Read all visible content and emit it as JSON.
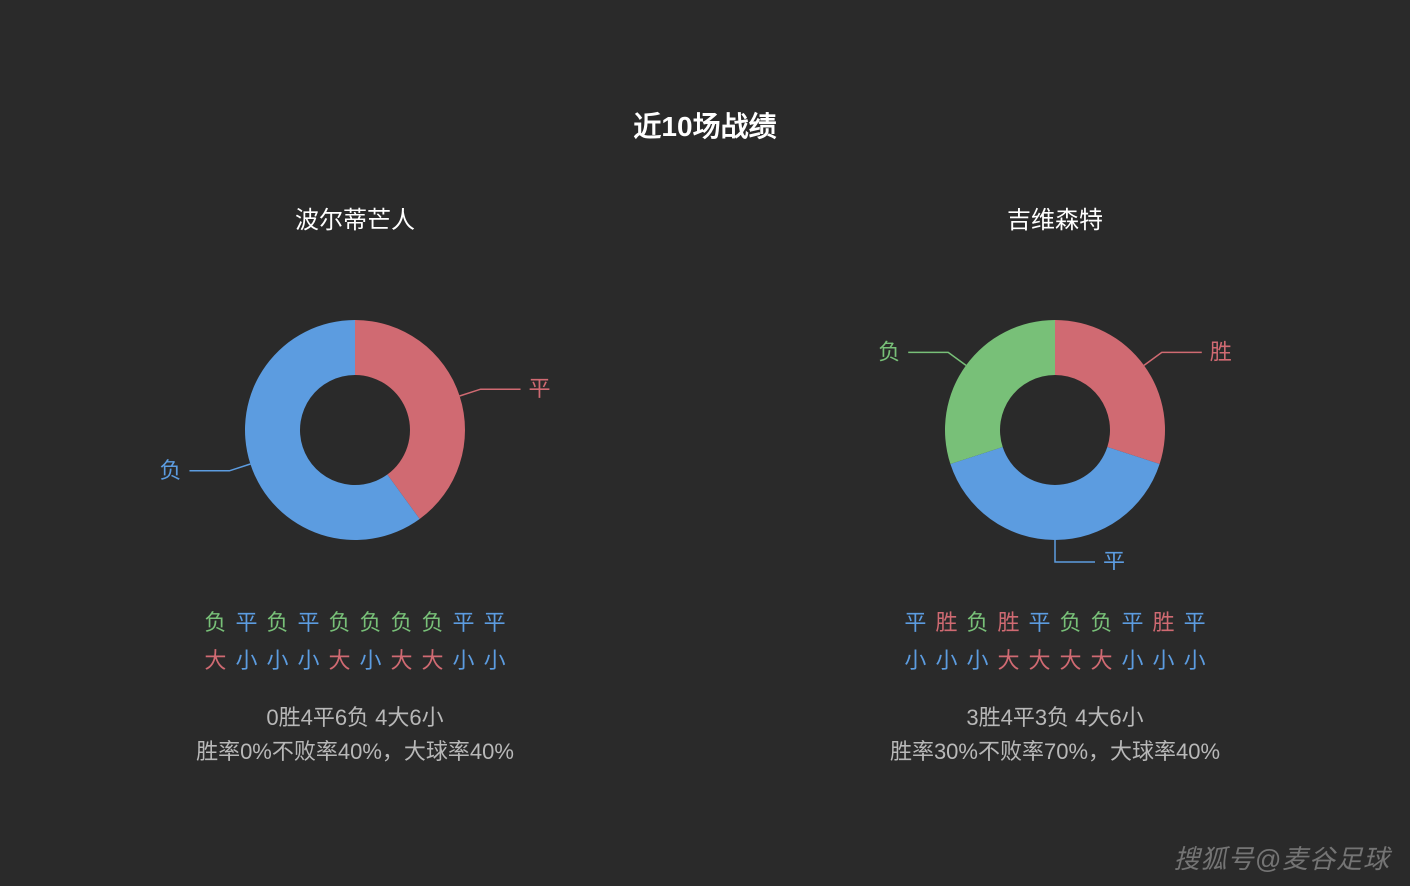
{
  "page": {
    "title": "近10场战绩",
    "background_color": "#2a2a2a",
    "text_color": "#e8e8e8",
    "title_fontsize": 28
  },
  "colors": {
    "win": "#d06a72",
    "draw": "#5c9ce0",
    "loss": "#78c078",
    "big": "#d06a72",
    "small": "#5c9ce0",
    "summary": "#b8b8b8",
    "label": "#ffffff"
  },
  "donut_style": {
    "outer_radius": 110,
    "inner_radius": 55,
    "leader_fontsize": 22,
    "leader_color_matches_slice": true,
    "stroke_width": 1
  },
  "teams": [
    {
      "name": "波尔蒂芒人",
      "donut": {
        "type": "donut",
        "slices": [
          {
            "label": "胜",
            "key": "win",
            "value": 0,
            "color": "#d06a72"
          },
          {
            "label": "平",
            "key": "draw",
            "value": 4,
            "color": "#5c9ce0"
          },
          {
            "label": "负",
            "key": "loss",
            "value": 6,
            "color": "#78c078"
          }
        ],
        "render_colors": [
          "#d06a72",
          "#5c9ce0"
        ],
        "render_values": [
          4,
          6
        ],
        "render_labels": [
          "平",
          "负"
        ],
        "start_angle_deg": 0
      },
      "results_row": [
        {
          "char": "负",
          "kind": "loss"
        },
        {
          "char": "平",
          "kind": "draw"
        },
        {
          "char": "负",
          "kind": "loss"
        },
        {
          "char": "平",
          "kind": "draw"
        },
        {
          "char": "负",
          "kind": "loss"
        },
        {
          "char": "负",
          "kind": "loss"
        },
        {
          "char": "负",
          "kind": "loss"
        },
        {
          "char": "负",
          "kind": "loss"
        },
        {
          "char": "平",
          "kind": "draw"
        },
        {
          "char": "平",
          "kind": "draw"
        }
      ],
      "bigsmall_row": [
        {
          "char": "大",
          "kind": "big"
        },
        {
          "char": "小",
          "kind": "small"
        },
        {
          "char": "小",
          "kind": "small"
        },
        {
          "char": "小",
          "kind": "small"
        },
        {
          "char": "大",
          "kind": "big"
        },
        {
          "char": "小",
          "kind": "small"
        },
        {
          "char": "大",
          "kind": "big"
        },
        {
          "char": "大",
          "kind": "big"
        },
        {
          "char": "小",
          "kind": "small"
        },
        {
          "char": "小",
          "kind": "small"
        }
      ],
      "summary_line1": "0胜4平6负 4大6小",
      "summary_line2": "胜率0%不败率40%，大球率40%"
    },
    {
      "name": "吉维森特",
      "donut": {
        "type": "donut",
        "slices": [
          {
            "label": "胜",
            "key": "win",
            "value": 3,
            "color": "#d06a72"
          },
          {
            "label": "平",
            "key": "draw",
            "value": 4,
            "color": "#5c9ce0"
          },
          {
            "label": "负",
            "key": "loss",
            "value": 3,
            "color": "#78c078"
          }
        ],
        "render_colors": [
          "#d06a72",
          "#5c9ce0",
          "#78c078"
        ],
        "render_values": [
          3,
          4,
          3
        ],
        "render_labels": [
          "胜",
          "平",
          "负"
        ],
        "start_angle_deg": 0
      },
      "results_row": [
        {
          "char": "平",
          "kind": "draw"
        },
        {
          "char": "胜",
          "kind": "win"
        },
        {
          "char": "负",
          "kind": "loss"
        },
        {
          "char": "胜",
          "kind": "win"
        },
        {
          "char": "平",
          "kind": "draw"
        },
        {
          "char": "负",
          "kind": "loss"
        },
        {
          "char": "负",
          "kind": "loss"
        },
        {
          "char": "平",
          "kind": "draw"
        },
        {
          "char": "胜",
          "kind": "win"
        },
        {
          "char": "平",
          "kind": "draw"
        }
      ],
      "bigsmall_row": [
        {
          "char": "小",
          "kind": "small"
        },
        {
          "char": "小",
          "kind": "small"
        },
        {
          "char": "小",
          "kind": "small"
        },
        {
          "char": "大",
          "kind": "big"
        },
        {
          "char": "大",
          "kind": "big"
        },
        {
          "char": "大",
          "kind": "big"
        },
        {
          "char": "大",
          "kind": "big"
        },
        {
          "char": "小",
          "kind": "small"
        },
        {
          "char": "小",
          "kind": "small"
        },
        {
          "char": "小",
          "kind": "small"
        }
      ],
      "summary_line1": "3胜4平3负 4大6小",
      "summary_line2": "胜率30%不败率70%，大球率40%"
    }
  ],
  "watermark": "搜狐号@麦谷足球"
}
